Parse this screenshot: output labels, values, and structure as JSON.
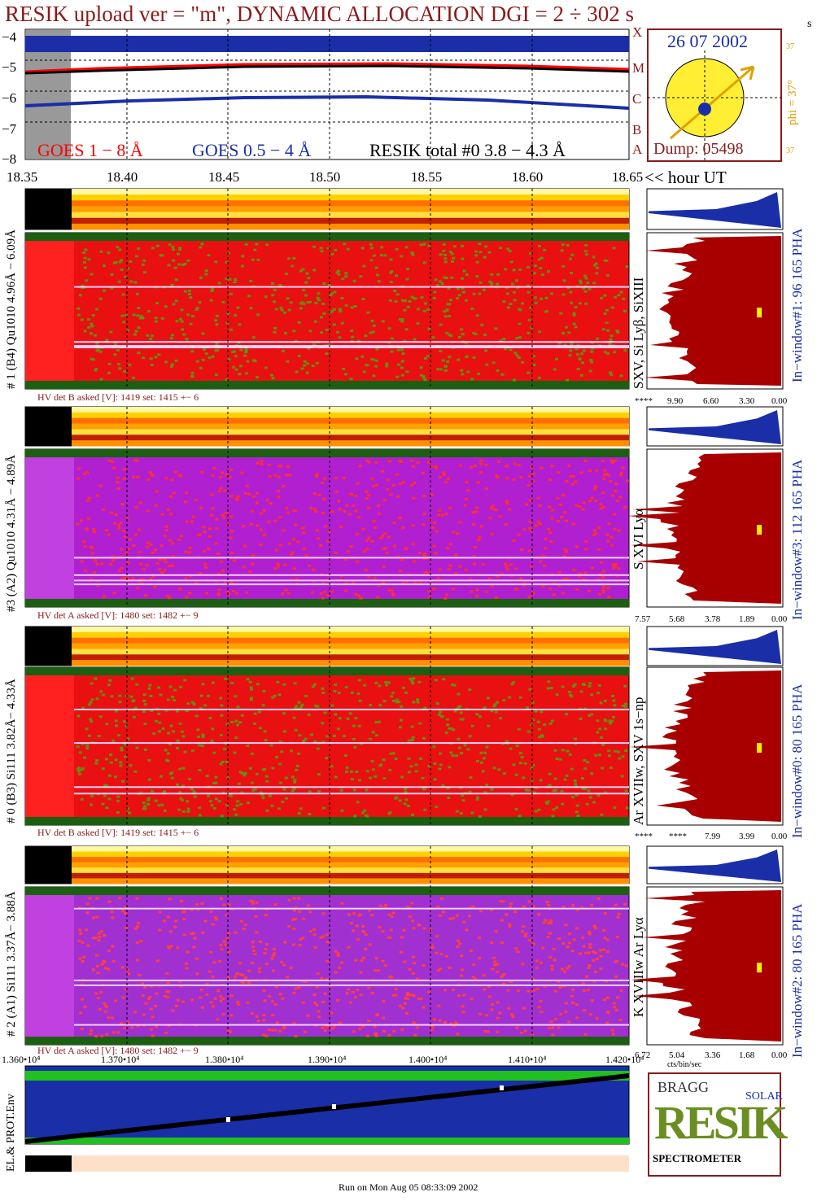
{
  "header": {
    "title": "RESIK upload ver = \"m\", DYNAMIC ALLOCATION  DGI =   2 ÷ 302 s",
    "corner_mark": "s"
  },
  "goes_panel": {
    "y_ticks": [
      "−4",
      "−5",
      "−6",
      "−7",
      "−8"
    ],
    "legend_goes18": "GOES 1 − 8 Å",
    "legend_goes054": "GOES 0.5 − 4 Å",
    "legend_resik": "RESIK total #0  3.8 − 4.3 Å",
    "class_letters": [
      "X",
      "M",
      "C",
      "B",
      "A"
    ],
    "x_ticks": [
      "18.35",
      "18.40",
      "18.45",
      "18.50",
      "18.55",
      "18.60",
      "18.65"
    ],
    "x_unit": "<< hour UT"
  },
  "sun_panel": {
    "date": "26 07 2002",
    "dump": "Dump: 05498",
    "phi_label": "phi = 37°",
    "phi_top": "37",
    "phi_bottom": "37"
  },
  "detectors": [
    {
      "left_label": "# 1 (B4) Qu1010 4.96Å − 6.09Å",
      "right_label": "SXV, Si Lyβ, SiXIII",
      "window_label": "In−window#1:   96 165  PHA",
      "hv": "HV det B asked [V]:  1419 set:  1415  +−   6",
      "axis": [
        "****",
        "9.90",
        "6.60",
        "3.30",
        "0.00"
      ]
    },
    {
      "left_label": "#3 (A2) Qu1010  4.31Å − 4.89Å",
      "right_label": "S XVI Lyα",
      "window_label": "In−window#3:  112 165  PHA",
      "hv": "HV det A asked [V]:  1480 set:  1482  +−   9",
      "axis": [
        "7.57",
        "5.68",
        "3.78",
        "1.89",
        "0.00"
      ]
    },
    {
      "left_label": "# 0 (B3) Si111  3.82Å− 4.33Å",
      "right_label": "Ar XVIIw,  SXV 1s−np",
      "window_label": "In−window#0:   80 165  PHA",
      "hv": "HV det B asked [V]:  1419 set:  1415  +−   6",
      "axis": [
        "****",
        "****",
        "7.99",
        "3.99",
        "0.00"
      ]
    },
    {
      "left_label": "# 2 (A1) Si111  3.37Å− 3.88Å",
      "right_label": "K XVIIIw  Ar Lyα",
      "window_label": "In−window#2:   80 165  PHA",
      "hv": "HV det A asked [V]:  1480 set:  1482  +−   9",
      "axis": [
        "6.72",
        "5.04",
        "3.36",
        "1.68",
        "0.00"
      ]
    }
  ],
  "bottom_panel": {
    "x_ticks": [
      "1.360•10⁴",
      "1.370•10⁴",
      "1.380•10⁴",
      "1.390•10⁴",
      "1.400•10⁴",
      "1.410•10⁴",
      "1.420•10⁴"
    ],
    "y_label": "EL.& PROT.Env",
    "cts_label": "cts/bin/sec"
  },
  "logo": {
    "letters": "RESIK",
    "bragg": "BRAGG",
    "solar": "SOLAR",
    "spectrometer": "SPECTROMETER"
  },
  "footer": "Run on Mon Aug 05 08:33:09 2002",
  "colors": {
    "title": "#8b1a1a",
    "goes_red": "#ff0000",
    "goes_blue": "#1a2ea8",
    "sun": "#ffee33"
  }
}
